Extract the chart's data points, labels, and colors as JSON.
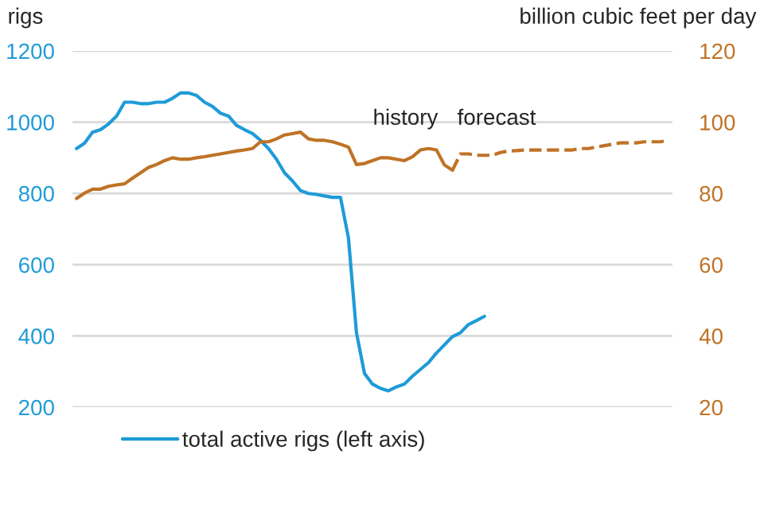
{
  "chart_data": {
    "type": "line",
    "ylabel": "rigs",
    "y2label": "billion cubic feet per day",
    "annotations": [
      "history",
      "forecast"
    ],
    "categories": [
      null,
      null,
      null,
      null,
      null,
      null,
      null,
      null,
      null,
      null,
      null,
      null,
      null,
      null,
      null,
      null,
      null,
      null,
      null,
      null,
      null,
      null,
      null,
      null,
      null,
      null,
      null,
      null,
      null,
      null,
      null,
      null,
      null,
      null,
      null,
      null,
      null,
      null,
      null,
      null,
      null,
      null,
      null,
      null,
      null,
      null,
      null,
      null,
      null,
      null,
      null,
      null,
      null,
      null,
      null,
      null,
      null,
      null,
      null,
      null,
      null,
      null,
      null,
      null,
      null,
      null,
      null,
      null,
      null,
      null,
      null,
      null,
      null,
      null,
      null
    ],
    "ylim": [
      200,
      1200
    ],
    "yticks": [
      200,
      400,
      600,
      800,
      1000,
      1200
    ],
    "y2lim": [
      20,
      120
    ],
    "y2ticks": [
      20,
      40,
      60,
      80,
      100,
      120
    ],
    "grid": "y",
    "legend": "bottom",
    "series": [
      {
        "name": "total active rigs (left axis)",
        "color": "#1f9bd7",
        "line_style": "solid",
        "values": [
          926,
          941,
          972,
          979,
          995,
          1017,
          1056,
          1056,
          1052,
          1052,
          1056,
          1056,
          1067,
          1082,
          1082,
          1075,
          1056,
          1044,
          1025,
          1017,
          991,
          979,
          968,
          949,
          926,
          896,
          858,
          835,
          808,
          800,
          797,
          793,
          789,
          789,
          675,
          409,
          295,
          265,
          253,
          246,
          257,
          265,
          287,
          306,
          325,
          352,
          375,
          398,
          409,
          432,
          443,
          455,
          null,
          null,
          null,
          null,
          null,
          null,
          null,
          null,
          null,
          null,
          null,
          null,
          null,
          null,
          null,
          null,
          null,
          null,
          null,
          null,
          null,
          null,
          null
        ]
      },
      {
        "color": "#bf7326",
        "axis": "y2",
        "line_style": "solid",
        "values": [
          78.6,
          80.1,
          81.2,
          81.2,
          82,
          82.4,
          82.7,
          84.3,
          85.8,
          87.3,
          88.1,
          89.2,
          90,
          89.6,
          89.6,
          90,
          90.3,
          90.7,
          91.1,
          91.5,
          91.9,
          92.2,
          92.6,
          94.5,
          94.5,
          95.3,
          96.4,
          96.8,
          97.2,
          95.3,
          94.9,
          94.9,
          94.5,
          93.8,
          93,
          88.1,
          88.4,
          89.2,
          90,
          90,
          89.6,
          89.2,
          90.3,
          92.2,
          92.6,
          92.2,
          88,
          86.5,
          null,
          null,
          null,
          null,
          null,
          null,
          null,
          null,
          null,
          null,
          null,
          null,
          null,
          null,
          null,
          null,
          null,
          null,
          null,
          null,
          null,
          null,
          null,
          null,
          null,
          null,
          null
        ]
      },
      {
        "color": "#bf7326",
        "axis": "y2",
        "line_style": "dashed",
        "values": [
          null,
          null,
          null,
          null,
          null,
          null,
          null,
          null,
          null,
          null,
          null,
          null,
          null,
          null,
          null,
          null,
          null,
          null,
          null,
          null,
          null,
          null,
          null,
          null,
          null,
          null,
          null,
          null,
          null,
          null,
          null,
          null,
          null,
          null,
          null,
          null,
          null,
          null,
          null,
          null,
          null,
          null,
          null,
          null,
          null,
          null,
          null,
          86.5,
          91.1,
          91.1,
          90.7,
          90.7,
          90.7,
          91.5,
          91.9,
          92,
          92.2,
          92.2,
          92.2,
          92.2,
          92.2,
          92.2,
          92.2,
          92.6,
          92.6,
          93,
          93.4,
          93.8,
          94.2,
          94.2,
          94.2,
          94.5,
          94.5,
          94.5,
          94.9
        ]
      }
    ]
  }
}
